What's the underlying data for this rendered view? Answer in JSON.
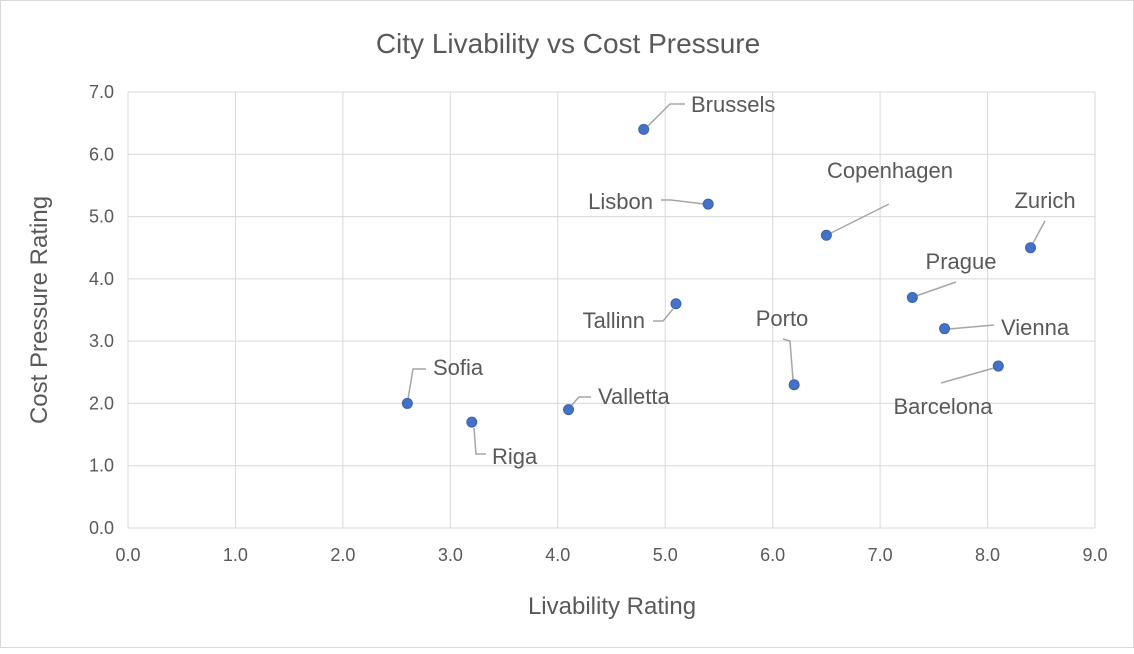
{
  "chart_data": {
    "type": "scatter",
    "title": "City Livability vs Cost Pressure",
    "xlabel": "Livability Rating",
    "ylabel": "Cost Pressure Rating",
    "xlim": [
      0,
      9
    ],
    "ylim": [
      0,
      7
    ],
    "xticks": [
      "0.0",
      "1.0",
      "2.0",
      "3.0",
      "4.0",
      "5.0",
      "6.0",
      "7.0",
      "8.0",
      "9.0"
    ],
    "yticks": [
      "0.0",
      "1.0",
      "2.0",
      "3.0",
      "4.0",
      "5.0",
      "6.0",
      "7.0"
    ],
    "grid": true,
    "marker_color": "#4472c4",
    "points": [
      {
        "label": "Brussels",
        "x": 4.8,
        "y": 6.4
      },
      {
        "label": "Lisbon",
        "x": 5.4,
        "y": 5.2
      },
      {
        "label": "Copenhagen",
        "x": 6.5,
        "y": 4.7
      },
      {
        "label": "Zurich",
        "x": 8.4,
        "y": 4.5
      },
      {
        "label": "Prague",
        "x": 7.3,
        "y": 3.7
      },
      {
        "label": "Tallinn",
        "x": 5.1,
        "y": 3.6
      },
      {
        "label": "Vienna",
        "x": 7.6,
        "y": 3.2
      },
      {
        "label": "Barcelona",
        "x": 8.1,
        "y": 2.6
      },
      {
        "label": "Porto",
        "x": 6.2,
        "y": 2.3
      },
      {
        "label": "Sofia",
        "x": 2.6,
        "y": 2.0
      },
      {
        "label": "Riga",
        "x": 3.2,
        "y": 1.7
      },
      {
        "label": "Valletta",
        "x": 4.1,
        "y": 1.9
      }
    ]
  }
}
